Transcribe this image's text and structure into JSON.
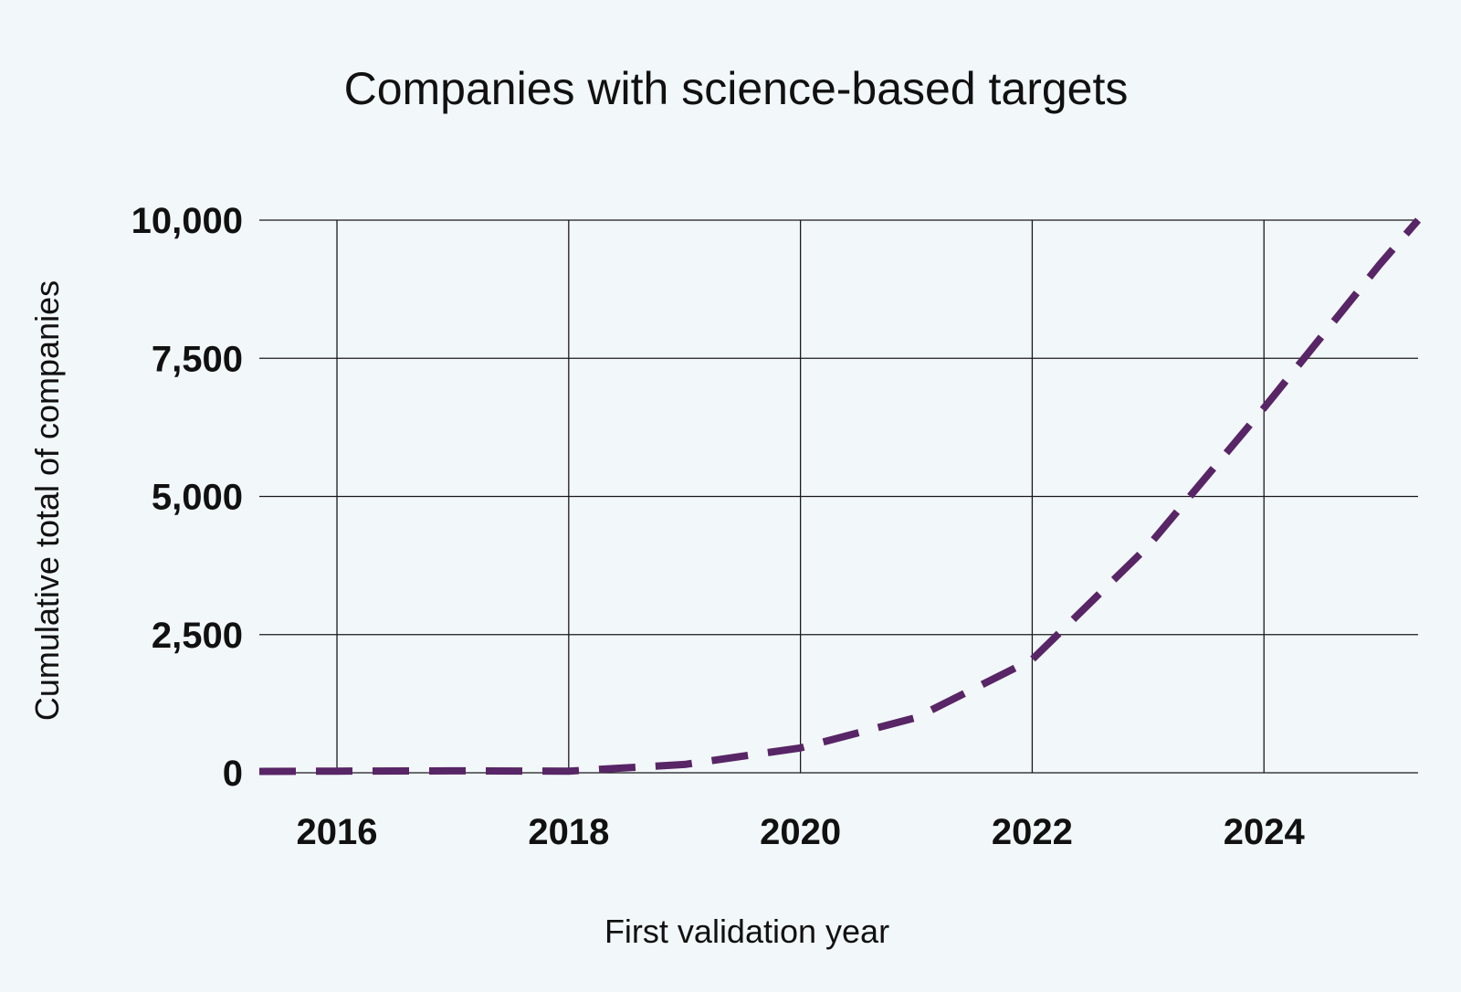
{
  "chart_data": {
    "type": "line",
    "title": "Companies with science-based targets",
    "xlabel": "First validation year",
    "ylabel": "Cumulative total of companies",
    "xlim": [
      2015.33,
      2025.33
    ],
    "ylim": [
      0,
      10000
    ],
    "x_ticks": [
      2016,
      2018,
      2020,
      2022,
      2024
    ],
    "x_tick_labels": [
      "2016",
      "2018",
      "2020",
      "2022",
      "2024"
    ],
    "y_ticks": [
      0,
      2500,
      5000,
      7500,
      10000
    ],
    "y_tick_labels": [
      "0",
      "2,500",
      "5,000",
      "7,500",
      "10,000"
    ],
    "grid": true,
    "line_style": "dashed",
    "series": [
      {
        "color": "#582566",
        "x": [
          2015.33,
          2016,
          2017,
          2018,
          2019,
          2020,
          2021,
          2022,
          2023,
          2024,
          2025,
          2025.33
        ],
        "y": [
          25,
          30,
          35,
          30,
          150,
          450,
          1000,
          2050,
          4100,
          6600,
          9200,
          10000
        ]
      }
    ]
  }
}
